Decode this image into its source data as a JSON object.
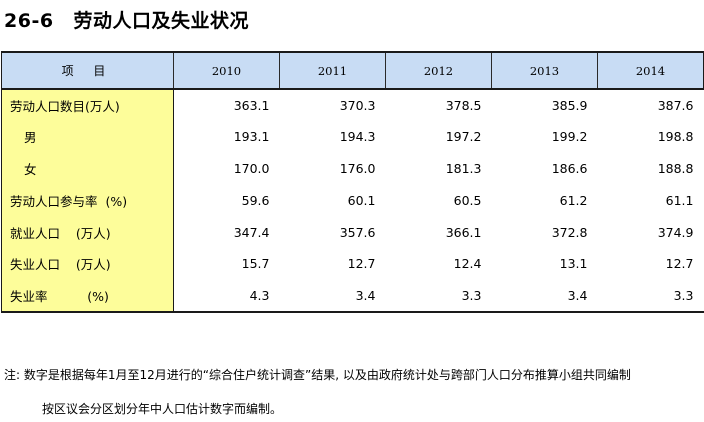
{
  "header": {
    "table_number": "26-6",
    "title": "劳动人口及失业状况"
  },
  "table": {
    "item_header": "项 目",
    "years": [
      "2010",
      "2011",
      "2012",
      "2013",
      "2014"
    ],
    "rows": [
      {
        "label": "劳动人口数目(万人)",
        "indent": false,
        "values": [
          "363.1",
          "370.3",
          "378.5",
          "385.9",
          "387.6"
        ]
      },
      {
        "label": "男",
        "indent": true,
        "values": [
          "193.1",
          "194.3",
          "197.2",
          "199.2",
          "198.8"
        ]
      },
      {
        "label": "女",
        "indent": true,
        "values": [
          "170.0",
          "176.0",
          "181.3",
          "186.6",
          "188.8"
        ]
      },
      {
        "label": "劳动人口参与率  (%)",
        "indent": false,
        "values": [
          "59.6",
          "60.1",
          "60.5",
          "61.2",
          "61.1"
        ]
      },
      {
        "label": "就业人口    (万人)",
        "indent": false,
        "values": [
          "347.4",
          "357.6",
          "366.1",
          "372.8",
          "374.9"
        ]
      },
      {
        "label": "失业人口    (万人)",
        "indent": false,
        "values": [
          "15.7",
          "12.7",
          "12.4",
          "13.1",
          "12.7"
        ]
      },
      {
        "label": "失业率          (%)",
        "indent": false,
        "values": [
          "4.3",
          "3.4",
          "3.3",
          "3.4",
          "3.3"
        ]
      }
    ]
  },
  "note": {
    "line1": "注: 数字是根据每年1月至12月进行的“综合住户统计调查”结果, 以及由政府统计处与跨部门人口分布推算小组共同编制",
    "line2": "按区议会分区划分年中人口估计数字而编制。"
  }
}
